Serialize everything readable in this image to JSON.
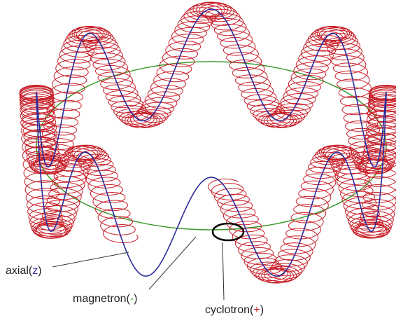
{
  "labels": {
    "axial": {
      "prefix": "axial(",
      "symbol": "z",
      "suffix": ")"
    },
    "magnetron": {
      "prefix": "magnetron(",
      "symbol": "-",
      "suffix": ")"
    },
    "cyclotron": {
      "prefix": "cyclotron(",
      "symbol": "+",
      "suffix": ")"
    }
  }
}
